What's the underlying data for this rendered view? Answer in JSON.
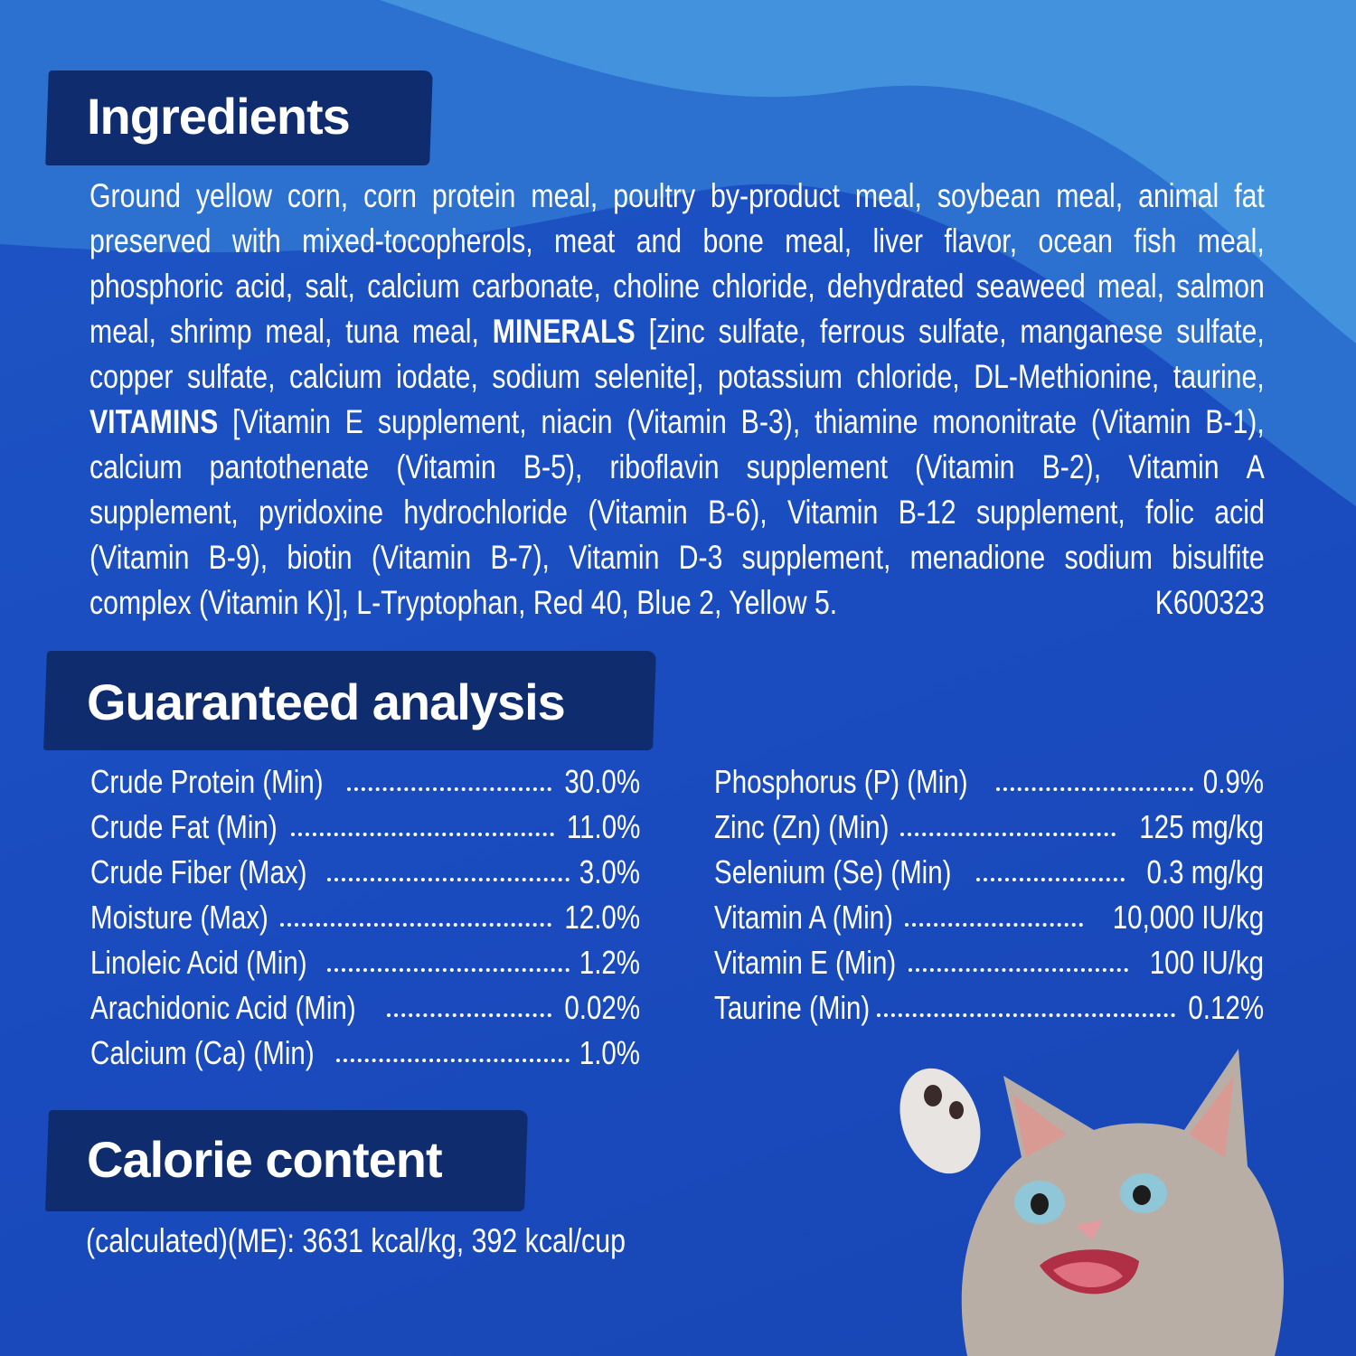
{
  "colors": {
    "background": "#1a4cc0",
    "banner": "#0f2c6e",
    "wave": "#3f8fdc",
    "text": "#ffffff"
  },
  "ingredients": {
    "heading": "Ingredients",
    "lines": [
      [
        {
          "t": "Ground yellow corn, corn protein meal, poultry by-product meal, soybean meal, animal fat"
        }
      ],
      [
        {
          "t": "preserved with mixed-tocopherols, meat and bone meal, liver flavor, ocean fish meal,"
        }
      ],
      [
        {
          "t": "phosphoric acid, salt, calcium carbonate, choline chloride, dehydrated seaweed meal, salmon"
        }
      ],
      [
        {
          "t": "meal, shrimp meal, tuna meal, "
        },
        {
          "t": "MINERALS",
          "b": true
        },
        {
          "t": " [zinc sulfate, ferrous sulfate, manganese sulfate,"
        }
      ],
      [
        {
          "t": "copper sulfate, calcium iodate, sodium selenite], potassium chloride, DL-Methionine, taurine,"
        }
      ],
      [
        {
          "t": "VITAMINS",
          "b": true
        },
        {
          "t": " [Vitamin E supplement, niacin (Vitamin B-3), thiamine mononitrate (Vitamin B-1),"
        }
      ],
      [
        {
          "t": "calcium pantothenate (Vitamin B-5), riboflavin supplement (Vitamin B-2), Vitamin A"
        }
      ],
      [
        {
          "t": "supplement, pyridoxine hydrochloride (Vitamin B-6), Vitamin B-12 supplement, folic acid"
        }
      ],
      [
        {
          "t": "(Vitamin B-9), biotin (Vitamin B-7), Vitamin D-3 supplement, menadione sodium bisulfite"
        }
      ],
      [
        {
          "t": "complex (Vitamin K)], L-Tryptophan, Red 40, Blue 2, Yellow 5."
        },
        {
          "t": "K600323"
        }
      ]
    ]
  },
  "analysis": {
    "heading": "Guaranteed analysis",
    "left": [
      {
        "label": "Crude Protein (Min)",
        "value": "30.0%"
      },
      {
        "label": "Crude Fat (Min)",
        "value": "11.0%"
      },
      {
        "label": "Crude Fiber (Max)",
        "value": "3.0%"
      },
      {
        "label": "Moisture (Max)",
        "value": "12.0%"
      },
      {
        "label": "Linoleic Acid (Min)",
        "value": "1.2%"
      },
      {
        "label": "Arachidonic Acid (Min)",
        "value": "0.02%"
      },
      {
        "label": "Calcium (Ca) (Min)",
        "value": "1.0%"
      }
    ],
    "right": [
      {
        "label": "Phosphorus (P) (Min)",
        "value": "0.9%"
      },
      {
        "label": "Zinc (Zn) (Min)",
        "value": "125 mg/kg"
      },
      {
        "label": "Selenium (Se) (Min)",
        "value": "0.3 mg/kg"
      },
      {
        "label": "Vitamin A (Min)",
        "value": "10,000 IU/kg"
      },
      {
        "label": "Vitamin E (Min)",
        "value": "100 IU/kg"
      },
      {
        "label": "Taurine (Min)",
        "value": "0.12%"
      }
    ]
  },
  "calorie": {
    "heading": "Calorie content",
    "text": "(calculated)(ME): 3631 kcal/kg, 392 kcal/cup"
  }
}
